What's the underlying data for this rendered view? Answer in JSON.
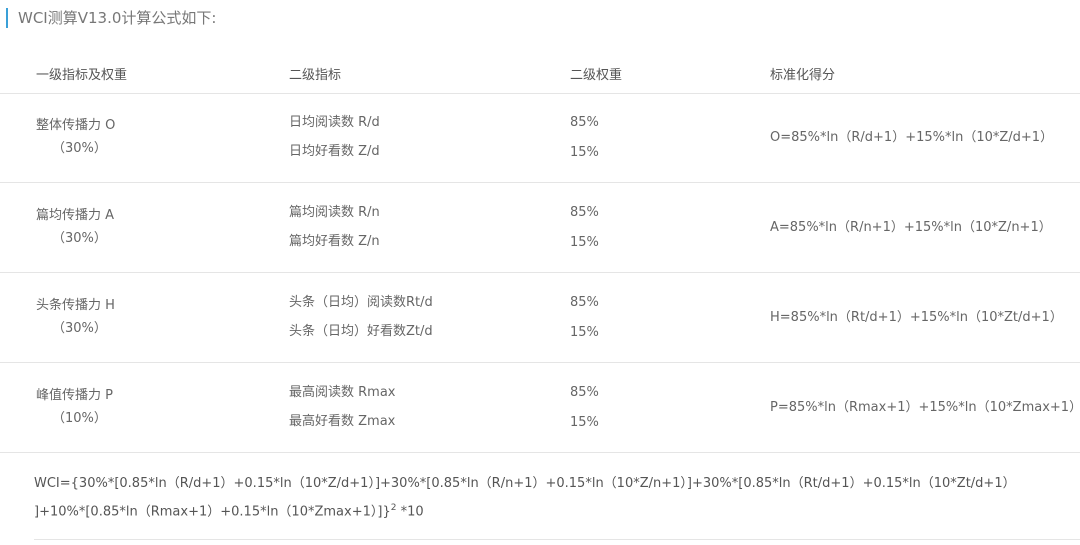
{
  "title": "WCI测算V13.0计算公式如下:",
  "headers": [
    "一级指标及权重",
    "二级指标",
    "二级权重",
    "标准化得分"
  ],
  "rows": [
    {
      "primary": "整体传播力 O",
      "primary_weight": "（30%）",
      "secondary": [
        "日均阅读数 R/d",
        "日均好看数 Z/d"
      ],
      "weights": [
        "85%",
        "15%"
      ],
      "formula": "O=85%*ln（R/d+1）+15%*ln（10*Z/d+1）"
    },
    {
      "primary": "篇均传播力 A",
      "primary_weight": "（30%）",
      "secondary": [
        "篇均阅读数 R/n",
        "篇均好看数 Z/n"
      ],
      "weights": [
        "85%",
        "15%"
      ],
      "formula": "A=85%*ln（R/n+1）+15%*ln（10*Z/n+1）"
    },
    {
      "primary": "头条传播力 H",
      "primary_weight": "（30%）",
      "secondary": [
        "头条（日均）阅读数Rt/d",
        "头条（日均）好看数Zt/d"
      ],
      "weights": [
        "85%",
        "15%"
      ],
      "formula": "H=85%*ln（Rt/d+1）+15%*ln（10*Zt/d+1）"
    },
    {
      "primary": "峰值传播力 P",
      "primary_weight": "（10%）",
      "secondary": [
        "最高阅读数 Rmax",
        "最高好看数 Zmax"
      ],
      "weights": [
        "85%",
        "15%"
      ],
      "formula": "P=85%*ln（Rmax+1）+15%*ln（10*Zmax+1）"
    }
  ],
  "wci": {
    "line1": "WCI={30%*[0.85*ln（R/d+1）+0.15*ln（10*Z/d+1）]+30%*[0.85*ln（R/n+1）+0.15*ln（10*Z/n+1）]+30%*[0.85*ln（Rt/d+1）+0.15*ln（10*Zt/d+1）",
    "line2": "]+10%*[0.85*ln（Rmax+1）+0.15*ln（10*Zmax+1）]}",
    "exponent": "2",
    "suffix": " *10"
  },
  "colors": {
    "accent": "#3aa0d8",
    "text": "#666666",
    "divider": "#e5e5e5"
  }
}
